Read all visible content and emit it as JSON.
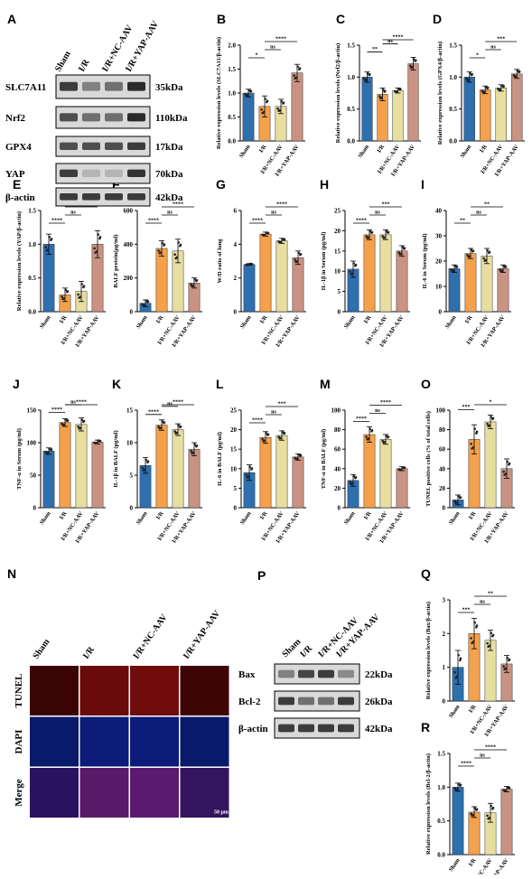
{
  "colors": {
    "sham": "#2e6fae",
    "ir": "#f5a04a",
    "nc": "#e8dea0",
    "yap": "#c99282",
    "blot_bg": "#d9d9d9",
    "band": "#2a2a2a"
  },
  "groups": [
    "Sham",
    "I/R",
    "I/R+NC-AAV",
    "I/R+YAP-AAV"
  ],
  "panel_A": {
    "letter": "A",
    "rows": [
      {
        "name": "SLC7A11",
        "kda": "35kDa"
      },
      {
        "name": "Nrf2",
        "kda": "110kDa"
      },
      {
        "name": "GPX4",
        "kda": "17kDa"
      },
      {
        "name": "YAP",
        "kda": "70kDa"
      },
      {
        "name": "β-actin",
        "kda": "42kDa"
      }
    ]
  },
  "panel_N": {
    "letter": "N",
    "rows": [
      "TUNEL",
      "DAPI",
      "Merge"
    ],
    "scale": "50 μm"
  },
  "panel_P": {
    "letter": "P",
    "rows": [
      {
        "name": "Bax",
        "kda": "22kDa"
      },
      {
        "name": "Bcl-2",
        "kda": "26kDa"
      },
      {
        "name": "β-actin",
        "kda": "42kDa"
      }
    ]
  },
  "chart_data": [
    {
      "id": "B",
      "type": "bar",
      "categories": [
        "Sham",
        "I/R",
        "I/R+NC-AAV",
        "I/R+YAP-AAV"
      ],
      "values": [
        1.0,
        0.72,
        0.72,
        1.42
      ],
      "errors": [
        0.08,
        0.22,
        0.15,
        0.18
      ],
      "ylabel": "Relative expression levels (SLC7A11/β-actin)",
      "ylim": [
        0,
        2.0
      ],
      "yticks": [
        "0.0",
        "0.5",
        "1.0",
        "1.5",
        "2.0"
      ],
      "sig": [
        {
          "a": 0,
          "b": 1,
          "t": "*"
        },
        {
          "a": 1,
          "b": 2,
          "t": "ns"
        },
        {
          "a": 1,
          "b": 3,
          "t": "****"
        }
      ]
    },
    {
      "id": "C",
      "type": "bar",
      "categories": [
        "Sham",
        "I/R",
        "I/R+NC-AAV",
        "I/R+YAP-AAV"
      ],
      "values": [
        1.0,
        0.73,
        0.79,
        1.21
      ],
      "errors": [
        0.08,
        0.1,
        0.04,
        0.1
      ],
      "ylabel": "Relative expression levels (Nrf2/β-actin)",
      "ylim": [
        0,
        1.5
      ],
      "yticks": [
        "0.0",
        "0.5",
        "1.0",
        "1.5"
      ],
      "sig": [
        {
          "a": 0,
          "b": 1,
          "t": "**"
        },
        {
          "a": 1,
          "b": 2,
          "t": "ns"
        },
        {
          "a": 1,
          "b": 3,
          "t": "****"
        }
      ]
    },
    {
      "id": "D",
      "type": "bar",
      "categories": [
        "Sham",
        "I/R",
        "I/R+NC-AAV",
        "I/R+YAP-AAV"
      ],
      "values": [
        1.0,
        0.8,
        0.83,
        1.05
      ],
      "errors": [
        0.08,
        0.06,
        0.05,
        0.07
      ],
      "ylabel": "Relative expression levels (GPX4/β-actin)",
      "ylim": [
        0,
        1.5
      ],
      "yticks": [
        "0.0",
        "0.5",
        "1.0",
        "1.5"
      ],
      "sig": [
        {
          "a": 0,
          "b": 1,
          "t": "*"
        },
        {
          "a": 1,
          "b": 2,
          "t": "ns"
        },
        {
          "a": 1,
          "b": 3,
          "t": "***"
        }
      ]
    },
    {
      "id": "E",
      "type": "bar",
      "categories": [
        "Sham",
        "I/R",
        "I/R+NC-AAV",
        "I/R+YAP-AAV"
      ],
      "values": [
        1.0,
        0.25,
        0.3,
        1.0
      ],
      "errors": [
        0.15,
        0.1,
        0.15,
        0.2
      ],
      "ylabel": "Relative expression levels (YAP/β-actin)",
      "ylim": [
        0,
        1.5
      ],
      "yticks": [
        "0.0",
        "0.5",
        "1.0",
        "1.5"
      ],
      "sig": [
        {
          "a": 0,
          "b": 1,
          "t": "****"
        },
        {
          "a": 1,
          "b": 2,
          "t": "ns"
        },
        {
          "a": 1,
          "b": 3,
          "t": "****"
        }
      ]
    },
    {
      "id": "F",
      "type": "bar",
      "categories": [
        "Sham",
        "I/R",
        "I/R+NC-AAV",
        "I/R+YAP-AAV"
      ],
      "values": [
        50,
        375,
        360,
        170
      ],
      "errors": [
        20,
        45,
        70,
        30
      ],
      "ylabel": "BALF protein(μg/ml)",
      "ylim": [
        0,
        600
      ],
      "yticks": [
        "0",
        "200",
        "400",
        "600"
      ],
      "sig": [
        {
          "a": 0,
          "b": 1,
          "t": "****"
        },
        {
          "a": 1,
          "b": 2,
          "t": "ns"
        },
        {
          "a": 1,
          "b": 3,
          "t": "****"
        }
      ]
    },
    {
      "id": "G",
      "type": "bar",
      "categories": [
        "Sham",
        "I/R",
        "I/R+NC-AAV",
        "I/R+YAP-AAV"
      ],
      "values": [
        2.8,
        4.6,
        4.2,
        3.2
      ],
      "errors": [
        0.05,
        0.12,
        0.15,
        0.4
      ],
      "ylabel": "W/D ratio of lung",
      "ylim": [
        0,
        6
      ],
      "yticks": [
        "0",
        "2",
        "4",
        "6"
      ],
      "sig": [
        {
          "a": 0,
          "b": 1,
          "t": "****"
        },
        {
          "a": 1,
          "b": 2,
          "t": "ns"
        },
        {
          "a": 1,
          "b": 3,
          "t": "****"
        }
      ]
    },
    {
      "id": "H",
      "type": "bar",
      "categories": [
        "Sham",
        "I/R",
        "I/R+NC-AAV",
        "I/R+YAP-AAV"
      ],
      "values": [
        10.5,
        19,
        19,
        15
      ],
      "errors": [
        2,
        1.2,
        1.2,
        1.3
      ],
      "ylabel": "IL-1β in Serum (pg/ml)",
      "ylim": [
        0,
        25
      ],
      "yticks": [
        "0",
        "5",
        "10",
        "15",
        "20",
        "25"
      ],
      "sig": [
        {
          "a": 0,
          "b": 1,
          "t": "****"
        },
        {
          "a": 1,
          "b": 2,
          "t": "ns"
        },
        {
          "a": 1,
          "b": 3,
          "t": "***"
        }
      ]
    },
    {
      "id": "I",
      "type": "bar",
      "categories": [
        "Sham",
        "I/R",
        "I/R+NC-AAV",
        "I/R+YAP-AAV"
      ],
      "values": [
        17,
        23,
        22,
        17
      ],
      "errors": [
        1.5,
        2,
        3,
        1.5
      ],
      "ylabel": "IL-6 in Serum (pg/ml)",
      "ylim": [
        0,
        40
      ],
      "yticks": [
        "0",
        "10",
        "20",
        "30",
        "40"
      ],
      "sig": [
        {
          "a": 0,
          "b": 1,
          "t": "**"
        },
        {
          "a": 1,
          "b": 2,
          "t": "ns"
        },
        {
          "a": 1,
          "b": 3,
          "t": "**"
        }
      ]
    },
    {
      "id": "J",
      "type": "bar",
      "categories": [
        "Sham",
        "I/R",
        "I/R+NC-AAV",
        "I/R+YAP-AAV"
      ],
      "values": [
        87,
        131,
        128,
        101
      ],
      "errors": [
        5,
        6,
        10,
        3
      ],
      "ylabel": "TNF-α in Serum (pg/ml)",
      "ylim": [
        0,
        150
      ],
      "yticks": [
        "0",
        "50",
        "100",
        "150"
      ],
      "sig": [
        {
          "a": 0,
          "b": 1,
          "t": "****"
        },
        {
          "a": 1,
          "b": 2,
          "t": "ns"
        },
        {
          "a": 1,
          "b": 3,
          "t": "****"
        }
      ]
    },
    {
      "id": "K",
      "type": "bar",
      "categories": [
        "Sham",
        "I/R",
        "I/R+NC-AAV",
        "I/R+YAP-AAV"
      ],
      "values": [
        6.5,
        12.7,
        12,
        9
      ],
      "errors": [
        1.2,
        0.8,
        0.9,
        1
      ],
      "ylabel": "IL-1β in BALF (pg/ml)",
      "ylim": [
        0,
        15
      ],
      "yticks": [
        "0",
        "5",
        "10",
        "15"
      ],
      "sig": [
        {
          "a": 0,
          "b": 1,
          "t": "****"
        },
        {
          "a": 1,
          "b": 2,
          "t": "ns"
        },
        {
          "a": 1,
          "b": 3,
          "t": "****"
        }
      ]
    },
    {
      "id": "L",
      "type": "bar",
      "categories": [
        "Sham",
        "I/R",
        "I/R+NC-AAV",
        "I/R+YAP-AAV"
      ],
      "values": [
        9,
        18,
        18.5,
        13
      ],
      "errors": [
        2,
        1.5,
        1.2,
        0.8
      ],
      "ylabel": "IL-6 in BALF (pg/ml)",
      "ylim": [
        0,
        25
      ],
      "yticks": [
        "0",
        "5",
        "10",
        "15",
        "20",
        "25"
      ],
      "sig": [
        {
          "a": 0,
          "b": 1,
          "t": "****"
        },
        {
          "a": 1,
          "b": 2,
          "t": "ns"
        },
        {
          "a": 1,
          "b": 3,
          "t": "***"
        }
      ]
    },
    {
      "id": "M",
      "type": "bar",
      "categories": [
        "Sham",
        "I/R",
        "I/R+NC-AAV",
        "I/R+YAP-AAV"
      ],
      "values": [
        28,
        75,
        70,
        40
      ],
      "errors": [
        6,
        8,
        5,
        2
      ],
      "ylabel": "TNF-α in BALF (pg/ml)",
      "ylim": [
        0,
        100
      ],
      "yticks": [
        "0",
        "20",
        "40",
        "60",
        "80",
        "100"
      ],
      "sig": [
        {
          "a": 0,
          "b": 1,
          "t": "****"
        },
        {
          "a": 1,
          "b": 2,
          "t": "ns"
        },
        {
          "a": 1,
          "b": 3,
          "t": "****"
        }
      ]
    },
    {
      "id": "O",
      "type": "bar",
      "categories": [
        "Sham",
        "I/R",
        "I/R+NC-AAV",
        "I/R+YAP-AAV"
      ],
      "values": [
        8,
        70,
        88,
        40
      ],
      "errors": [
        5,
        15,
        7,
        10
      ],
      "ylabel": "TUNEL positive cells (% of total cells)",
      "ylim": [
        0,
        100
      ],
      "yticks": [
        "0",
        "20",
        "40",
        "60",
        "80",
        "100"
      ],
      "sig": [
        {
          "a": 0,
          "b": 1,
          "t": "***"
        },
        {
          "a": 1,
          "b": 3,
          "t": "*"
        }
      ]
    },
    {
      "id": "Q",
      "type": "bar",
      "categories": [
        "Sham",
        "I/R",
        "I/R+NC-AAV",
        "I/R+YAP-AAV"
      ],
      "values": [
        1.0,
        2.0,
        1.8,
        1.1
      ],
      "errors": [
        0.5,
        0.45,
        0.3,
        0.25
      ],
      "ylabel": "Relative expression levels (Bax/β-actin)",
      "ylim": [
        0,
        3
      ],
      "yticks": [
        "0",
        "1",
        "2",
        "3"
      ],
      "sig": [
        {
          "a": 0,
          "b": 1,
          "t": "***"
        },
        {
          "a": 1,
          "b": 2,
          "t": "ns"
        },
        {
          "a": 1,
          "b": 3,
          "t": "**"
        }
      ]
    },
    {
      "id": "R",
      "type": "bar",
      "categories": [
        "Sham",
        "I/R",
        "I/R+NC-AAV",
        "I/R+YAP-AAV"
      ],
      "values": [
        1.0,
        0.63,
        0.62,
        0.97
      ],
      "errors": [
        0.06,
        0.08,
        0.14,
        0.04
      ],
      "ylabel": "Relative expression levels (Bcl-2/β-actin)",
      "ylim": [
        0,
        1.5
      ],
      "yticks": [
        "0.0",
        "0.5",
        "1.0",
        "1.5"
      ],
      "sig": [
        {
          "a": 0,
          "b": 1,
          "t": "****"
        },
        {
          "a": 1,
          "b": 2,
          "t": "ns"
        },
        {
          "a": 1,
          "b": 3,
          "t": "****"
        }
      ]
    }
  ]
}
